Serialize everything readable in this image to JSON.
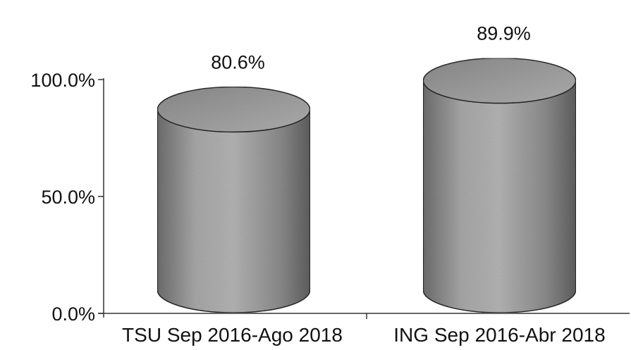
{
  "chart_data": {
    "type": "bar",
    "bar_shape": "cylinder",
    "categories": [
      "TSU Sep 2016-Ago 2018",
      "ING Sep 2016-Abr 2018"
    ],
    "values": [
      80.6,
      89.9
    ],
    "data_labels": [
      "80.6%",
      "89.9%"
    ],
    "y_ticks": [
      0,
      50,
      100
    ],
    "y_tick_labels": [
      "0.0%",
      "50.0%",
      "100.0%"
    ],
    "ylim": [
      0,
      100
    ],
    "title": "",
    "xlabel": "",
    "ylabel": "",
    "grid": false,
    "legend": "none",
    "bar_color": "#9a9a9a"
  }
}
